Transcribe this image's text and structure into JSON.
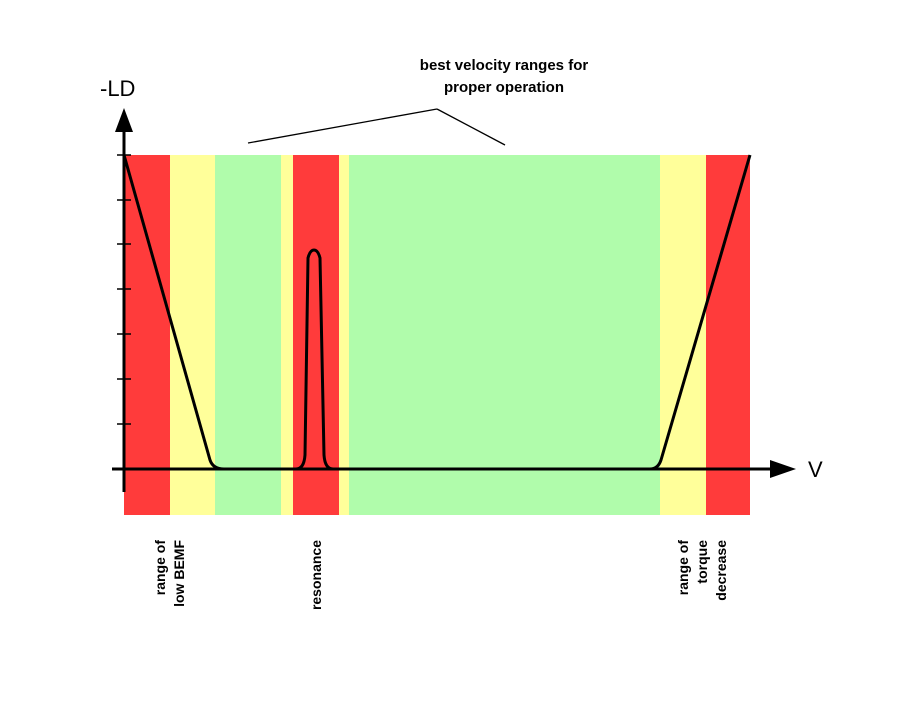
{
  "diagram": {
    "y_axis_label": "-LD",
    "x_axis_label": "V",
    "annotation": [
      "best velocity ranges for",
      "proper operation"
    ],
    "zone_labels": {
      "low_bemf": [
        "range of",
        "low BEMF"
      ],
      "resonance": [
        "resonance"
      ],
      "torque_decrease": [
        "range of",
        "torque",
        "decrease"
      ]
    },
    "colors": {
      "red": "#ff3b3b",
      "yellow": "#ffff9a",
      "green": "#b0fcab",
      "curve": "#000000"
    }
  }
}
